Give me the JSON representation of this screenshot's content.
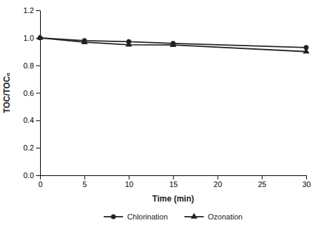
{
  "chart_data": {
    "type": "line",
    "xlabel": "Time (min)",
    "ylabel": "TOC/TOC₀",
    "x": [
      0,
      5,
      10,
      15,
      30
    ],
    "series": [
      {
        "name": "Chlorination",
        "color": "#222222",
        "marker": "circle",
        "values": [
          1.0,
          0.98,
          0.972,
          0.96,
          0.93
        ]
      },
      {
        "name": "Ozonation",
        "color": "#222222",
        "marker": "triangle",
        "values": [
          1.0,
          0.968,
          0.95,
          0.948,
          0.9
        ]
      }
    ],
    "xlim": [
      0,
      30
    ],
    "xticks": [
      0,
      5,
      10,
      15,
      20,
      25,
      30
    ],
    "ylim": [
      0.0,
      1.2
    ],
    "yticks": [
      {
        "value": 0,
        "label": "0.0"
      },
      0.2,
      0.4,
      0.6,
      0.8,
      {
        "value": 1,
        "label": "1.0"
      },
      1.2
    ],
    "grid": false,
    "legend": "bottom"
  }
}
